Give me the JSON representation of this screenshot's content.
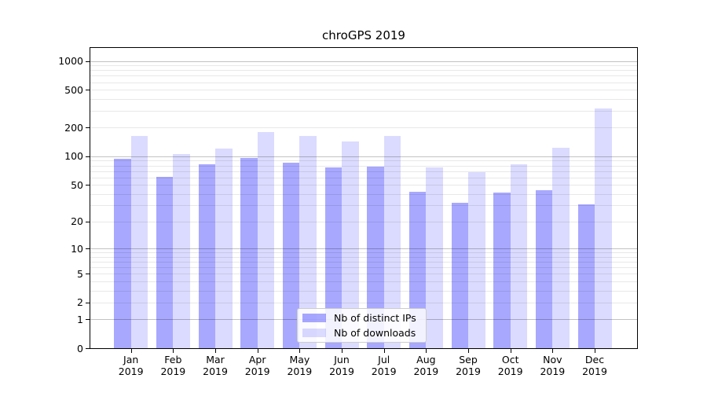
{
  "chart_data": {
    "type": "bar",
    "title": "chroGPS 2019",
    "categories": [
      "Jan",
      "Feb",
      "Mar",
      "Apr",
      "May",
      "Jun",
      "Jul",
      "Aug",
      "Sep",
      "Oct",
      "Nov",
      "Dec"
    ],
    "category_subline": "2019",
    "series": [
      {
        "name": "Nb of distinct IPs",
        "color": "rgba(0,0,255,0.34)",
        "values": [
          94,
          61,
          83,
          96,
          85,
          77,
          78,
          42,
          32,
          41,
          44,
          31
        ]
      },
      {
        "name": "Nb of downloads",
        "color": "rgba(0,0,255,0.14)",
        "values": [
          163,
          106,
          121,
          180,
          165,
          144,
          163,
          76,
          68,
          82,
          123,
          320
        ]
      }
    ],
    "y_scale": "log10(value+1)",
    "ylim": [
      0,
      1400
    ],
    "y_tick_labels": [
      "0",
      "1",
      "2",
      "5",
      "10",
      "20",
      "50",
      "100",
      "200",
      "500",
      "1000"
    ],
    "y_tick_values": [
      0,
      1,
      2,
      5,
      10,
      20,
      50,
      100,
      200,
      500,
      1000
    ],
    "grid": {
      "major_values": [
        1,
        10,
        100,
        1000
      ],
      "minor_values": [
        2,
        3,
        4,
        5,
        6,
        7,
        8,
        9,
        20,
        30,
        40,
        50,
        60,
        70,
        80,
        90,
        200,
        300,
        400,
        500,
        600,
        700,
        800,
        900
      ],
      "major_color": "rgba(0,0,0,0.24)",
      "minor_color": "rgba(0,0,0,0.09)"
    },
    "legend_position": "bottom-center",
    "legend_entries": [
      "Nb of distinct IPs",
      "Nb of downloads"
    ]
  }
}
